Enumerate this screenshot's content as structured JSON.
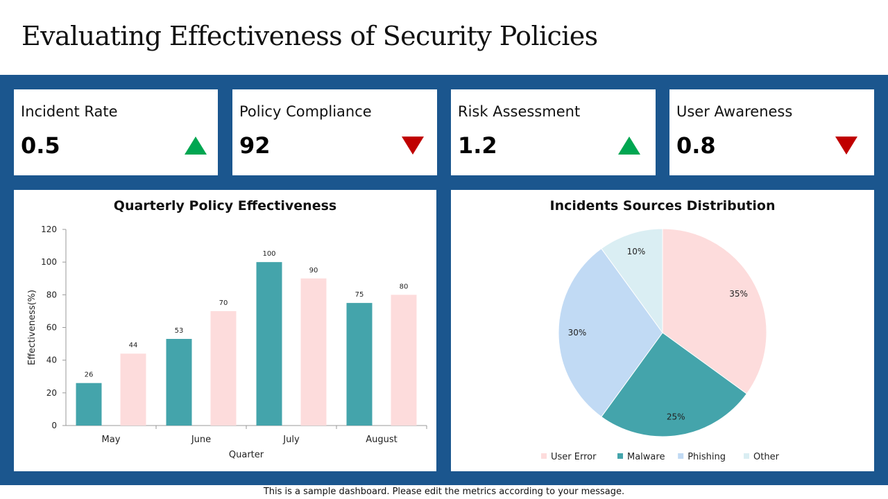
{
  "page": {
    "title": "Evaluating Effectiveness of Security Policies",
    "footer": "This is a sample dashboard. Please edit the metrics according to your message."
  },
  "kpis": [
    {
      "label": "Incident Rate",
      "value": "0.5",
      "trend": "up",
      "color": "#00a651"
    },
    {
      "label": "Policy Compliance",
      "value": "92",
      "trend": "down",
      "color": "#c00000"
    },
    {
      "label": "Risk Assessment",
      "value": "1.2",
      "trend": "up",
      "color": "#00a651"
    },
    {
      "label": "User Awareness",
      "value": "0.8",
      "trend": "down",
      "color": "#c00000"
    }
  ],
  "colors": {
    "panel": "#1b568e",
    "teal": "#44a4ab",
    "pink": "#fddcdc",
    "lightblue": "#c1daf4",
    "paleblue": "#daeef3"
  },
  "chart_data": [
    {
      "type": "bar",
      "title": "Quarterly Policy Effectiveness",
      "xlabel": "Quarter",
      "ylabel": "Effectiveness(%)",
      "categories": [
        "May",
        "June",
        "July",
        "August"
      ],
      "series": [
        {
          "values": [
            26,
            53,
            100,
            75
          ],
          "color": "#44a4ab"
        },
        {
          "values": [
            44,
            70,
            90,
            80
          ],
          "color": "#fddcdc"
        }
      ],
      "ylim": [
        0,
        120
      ],
      "yticks": [
        "0",
        "20",
        "40",
        "60",
        "80",
        "100",
        "120"
      ],
      "grid": false,
      "data_labels": true
    },
    {
      "type": "pie",
      "title": "Incidents Sources Distribution",
      "slices": [
        {
          "label": "User Error",
          "value": 35,
          "display": "35%",
          "color": "#fddcdc"
        },
        {
          "label": "Malware",
          "value": 25,
          "display": "25%",
          "color": "#44a4ab"
        },
        {
          "label": "Phishing",
          "value": 30,
          "display": "30%",
          "color": "#c1daf4"
        },
        {
          "label": "Other",
          "value": 10,
          "display": "10%",
          "color": "#daeef3"
        }
      ],
      "legend": "bottom"
    }
  ]
}
